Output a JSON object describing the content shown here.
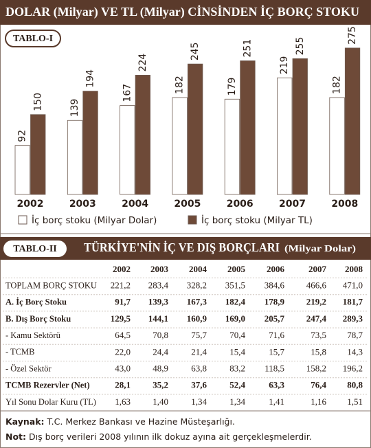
{
  "chart_data": {
    "type": "bar",
    "title": "DOLAR (Milyar) VE TL (Milyar) CİNSİNDEN İÇ BORÇ STOKU",
    "panel_label": "TABLO-I",
    "categories": [
      "2002",
      "2003",
      "2004",
      "2005",
      "2006",
      "2007",
      "2008"
    ],
    "series": [
      {
        "name": "İç borç stoku (Milyar Dolar)",
        "color": "#ffffff",
        "values": [
          92,
          139,
          167,
          182,
          179,
          219,
          182
        ]
      },
      {
        "name": "İç borç stoku (Milyar TL)",
        "color": "#6e4a38",
        "values": [
          150,
          194,
          224,
          245,
          251,
          255,
          275
        ]
      }
    ]
  },
  "table": {
    "panel_label": "TABLO-II",
    "title": "TÜRKİYE'NİN İÇ VE DIŞ BORÇLARI",
    "unit": "(Milyar Dolar)",
    "columns": [
      "2002",
      "2003",
      "2004",
      "2005",
      "2006",
      "2007",
      "2008"
    ],
    "rows": [
      {
        "label": "TOPLAM BORÇ STOKU",
        "values": [
          "221,2",
          "283,4",
          "328,2",
          "351,5",
          "384,6",
          "466,6",
          "471,0"
        ]
      },
      {
        "label": "A. İç Borç Stoku",
        "values": [
          "91,7",
          "139,3",
          "167,3",
          "182,4",
          "178,9",
          "219,2",
          "181,7"
        ]
      },
      {
        "label": "B. Dış Borç Stoku",
        "values": [
          "129,5",
          "144,1",
          "160,9",
          "169,0",
          "205,7",
          "247,4",
          "289,3"
        ]
      },
      {
        "label": "- Kamu Sektörü",
        "values": [
          "64,5",
          "70,8",
          "75,7",
          "70,4",
          "71,6",
          "73,5",
          "78,7"
        ]
      },
      {
        "label": "- TCMB",
        "values": [
          "22,0",
          "24,4",
          "21,4",
          "15,4",
          "15,7",
          "15,8",
          "14,3"
        ]
      },
      {
        "label": "- Özel Sektör",
        "values": [
          "43,0",
          "48,9",
          "63,8",
          "83,2",
          "118,5",
          "158,2",
          "196,2"
        ]
      },
      {
        "label": "TCMB Rezervler (Net)",
        "values": [
          "28,1",
          "35,2",
          "37,6",
          "52,4",
          "63,3",
          "76,4",
          "80,8"
        ]
      },
      {
        "label": "Yıl Sonu Dolar Kuru (TL)",
        "values": [
          "1,63",
          "1,40",
          "1,34",
          "1,34",
          "1,41",
          "1,16",
          "1,51"
        ]
      }
    ]
  },
  "footer": {
    "source_label": "Kaynak:",
    "source": "T.C. Merkez Bankası ve Hazine Müsteşarlığı.",
    "note_label": "Not:",
    "note": "Dış borç verileri 2008 yılının ilk dokuz ayına ait gerçekleşmelerdir."
  }
}
